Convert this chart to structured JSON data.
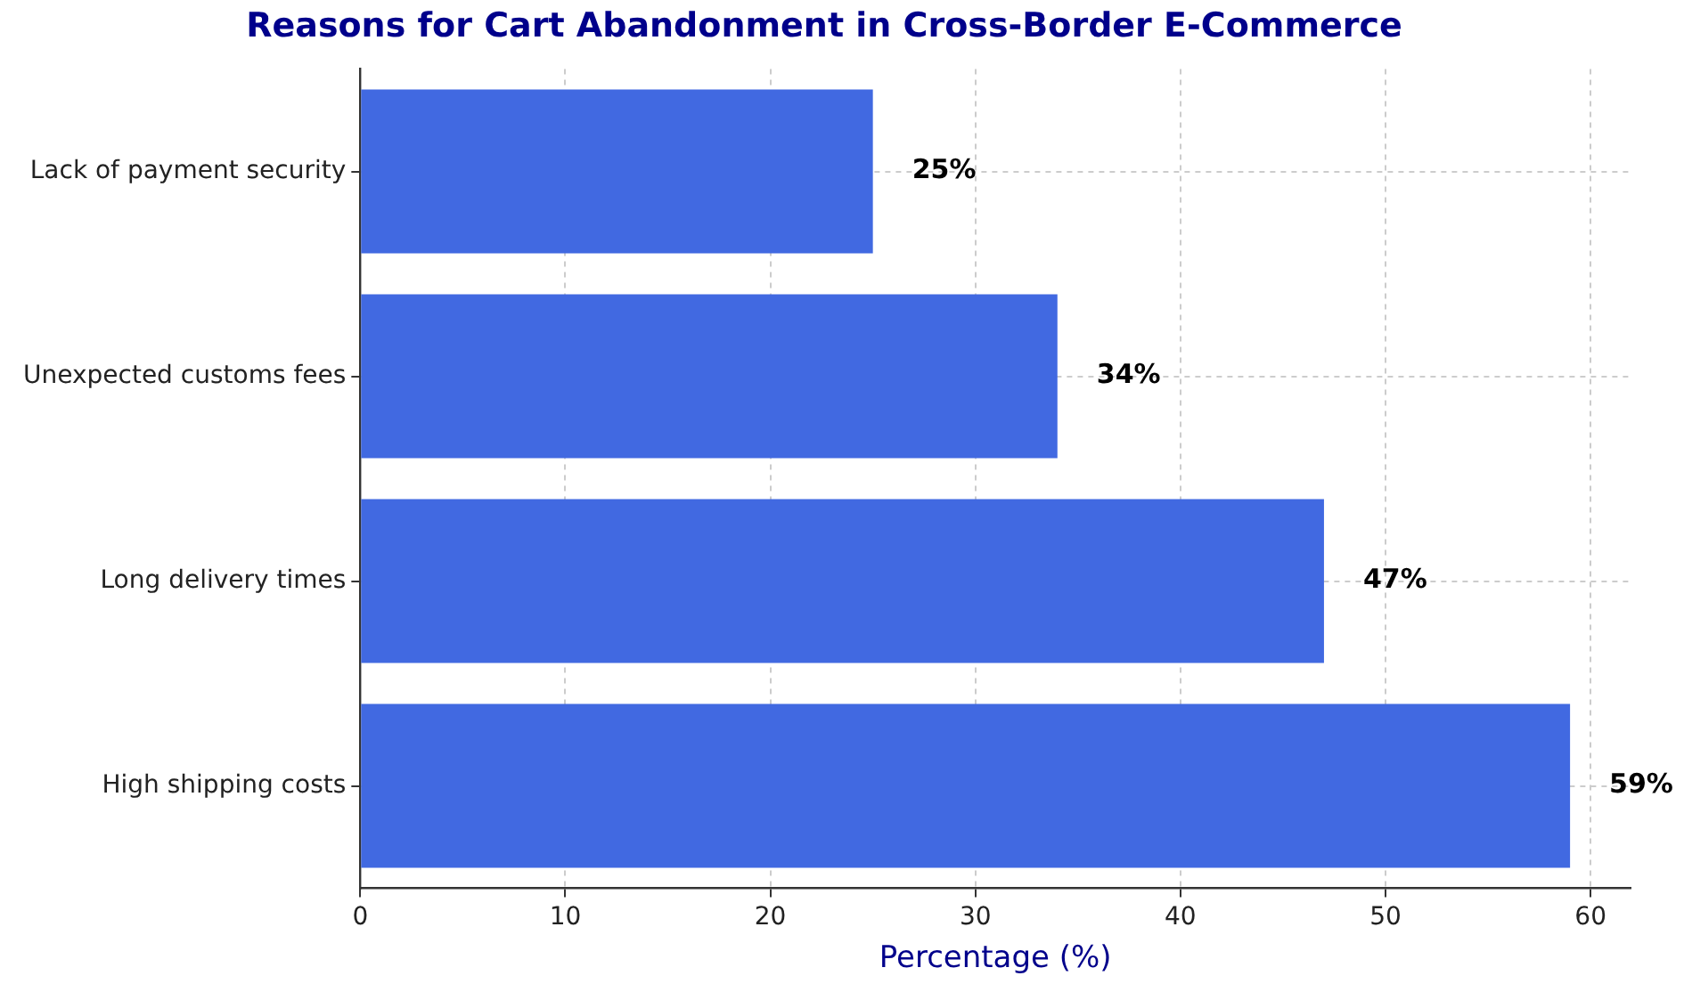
{
  "chart_data": {
    "type": "bar",
    "orientation": "horizontal",
    "title": "Reasons for Cart Abandonment in Cross-Border E-Commerce",
    "xlabel": "Percentage (%)",
    "categories": [
      "Lack of payment security",
      "Unexpected customs fees",
      "Long delivery times",
      "High shipping costs"
    ],
    "values": [
      25,
      34,
      47,
      59
    ],
    "color": "#4169e1",
    "value_labels": [
      "25%",
      "34%",
      "47%",
      "59%"
    ],
    "xlim": [
      0,
      61.95
    ],
    "xticks": [
      0,
      10,
      20,
      30,
      40,
      50,
      60
    ],
    "grid": true,
    "legend": false
  }
}
